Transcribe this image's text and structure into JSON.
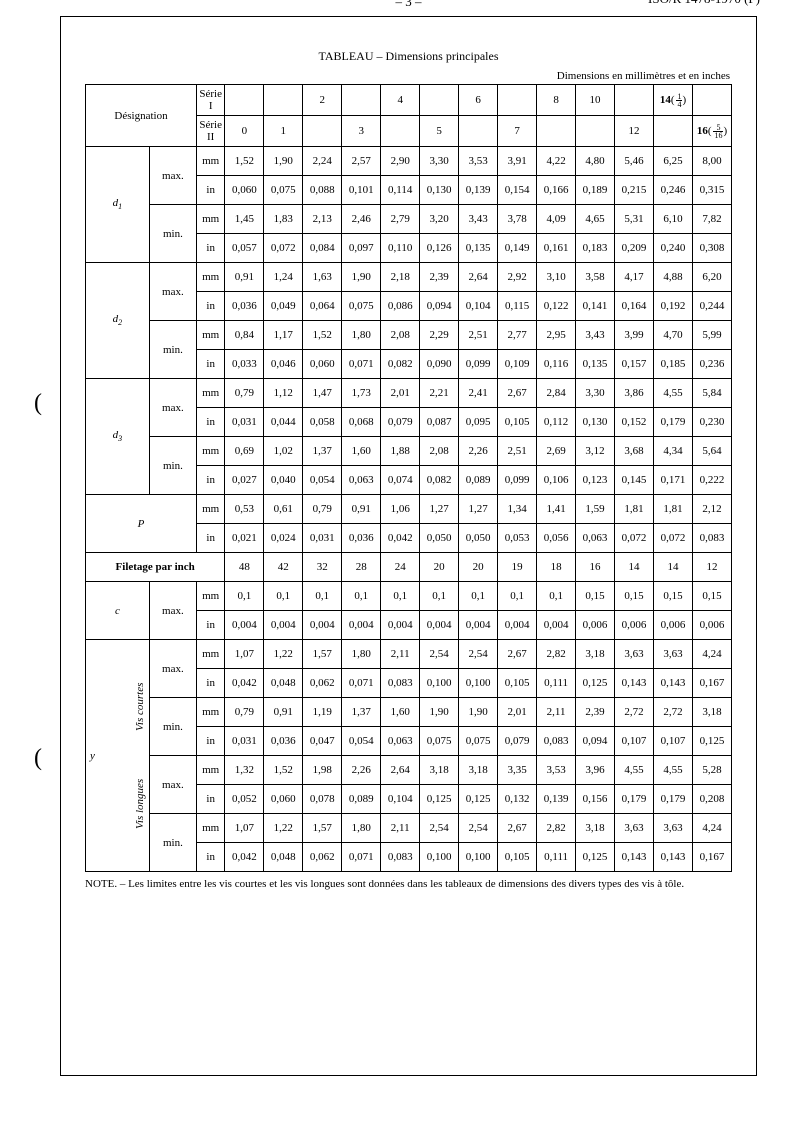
{
  "page_number": "– 3 –",
  "document_id": "ISO/R 1478-1970 (F)",
  "table_title": "TABLEAU – Dimensions principales",
  "units_caption": "Dimensions en millimètres et en inches",
  "labels": {
    "designation": "Désignation",
    "serie1": "Série I",
    "serie2": "Série II",
    "max": "max.",
    "min": "min.",
    "mm": "mm",
    "in": "in",
    "d1": "d",
    "d1sub": "1",
    "d2": "d",
    "d2sub": "2",
    "d3": "d",
    "d3sub": "3",
    "P": "P",
    "filetage": "Filetage par inch",
    "c": "c",
    "y": "y",
    "vis_courtes": "Vis courtes",
    "vis_longues": "Vis longues"
  },
  "header": {
    "serie1_cells": [
      "",
      "",
      "2",
      "",
      "4",
      "",
      "6",
      "",
      "8",
      "10",
      "",
      "14 (¼)",
      ""
    ],
    "serie2_cells": [
      "0",
      "1",
      "",
      "3",
      "",
      "5",
      "",
      "7",
      "",
      "",
      "12",
      "",
      "16(5/16)"
    ],
    "serie2_frac14_num": "1",
    "serie2_frac14_den": "4",
    "serie2_frac516_num": "5",
    "serie2_frac516_den": "16"
  },
  "rows": {
    "d1_max_mm": [
      "1,52",
      "1,90",
      "2,24",
      "2,57",
      "2,90",
      "3,30",
      "3,53",
      "3,91",
      "4,22",
      "4,80",
      "5,46",
      "6,25",
      "8,00"
    ],
    "d1_max_in": [
      "0,060",
      "0,075",
      "0,088",
      "0,101",
      "0,114",
      "0,130",
      "0,139",
      "0,154",
      "0,166",
      "0,189",
      "0,215",
      "0,246",
      "0,315"
    ],
    "d1_min_mm": [
      "1,45",
      "1,83",
      "2,13",
      "2,46",
      "2,79",
      "3,20",
      "3,43",
      "3,78",
      "4,09",
      "4,65",
      "5,31",
      "6,10",
      "7,82"
    ],
    "d1_min_in": [
      "0,057",
      "0,072",
      "0,084",
      "0,097",
      "0,110",
      "0,126",
      "0,135",
      "0,149",
      "0,161",
      "0,183",
      "0,209",
      "0,240",
      "0,308"
    ],
    "d2_max_mm": [
      "0,91",
      "1,24",
      "1,63",
      "1,90",
      "2,18",
      "2,39",
      "2,64",
      "2,92",
      "3,10",
      "3,58",
      "4,17",
      "4,88",
      "6,20"
    ],
    "d2_max_in": [
      "0,036",
      "0,049",
      "0,064",
      "0,075",
      "0,086",
      "0,094",
      "0,104",
      "0,115",
      "0,122",
      "0,141",
      "0,164",
      "0,192",
      "0,244"
    ],
    "d2_min_mm": [
      "0,84",
      "1,17",
      "1,52",
      "1,80",
      "2,08",
      "2,29",
      "2,51",
      "2,77",
      "2,95",
      "3,43",
      "3,99",
      "4,70",
      "5,99"
    ],
    "d2_min_in": [
      "0,033",
      "0,046",
      "0,060",
      "0,071",
      "0,082",
      "0,090",
      "0,099",
      "0,109",
      "0,116",
      "0,135",
      "0,157",
      "0,185",
      "0,236"
    ],
    "d3_max_mm": [
      "0,79",
      "1,12",
      "1,47",
      "1,73",
      "2,01",
      "2,21",
      "2,41",
      "2,67",
      "2,84",
      "3,30",
      "3,86",
      "4,55",
      "5,84"
    ],
    "d3_max_in": [
      "0,031",
      "0,044",
      "0,058",
      "0,068",
      "0,079",
      "0,087",
      "0,095",
      "0,105",
      "0,112",
      "0,130",
      "0,152",
      "0,179",
      "0,230"
    ],
    "d3_min_mm": [
      "0,69",
      "1,02",
      "1,37",
      "1,60",
      "1,88",
      "2,08",
      "2,26",
      "2,51",
      "2,69",
      "3,12",
      "3,68",
      "4,34",
      "5,64"
    ],
    "d3_min_in": [
      "0,027",
      "0,040",
      "0,054",
      "0,063",
      "0,074",
      "0,082",
      "0,089",
      "0,099",
      "0,106",
      "0,123",
      "0,145",
      "0,171",
      "0,222"
    ],
    "P_mm": [
      "0,53",
      "0,61",
      "0,79",
      "0,91",
      "1,06",
      "1,27",
      "1,27",
      "1,34",
      "1,41",
      "1,59",
      "1,81",
      "1,81",
      "2,12"
    ],
    "P_in": [
      "0,021",
      "0,024",
      "0,031",
      "0,036",
      "0,042",
      "0,050",
      "0,050",
      "0,053",
      "0,056",
      "0,063",
      "0,072",
      "0,072",
      "0,083"
    ],
    "filetage": [
      "48",
      "42",
      "32",
      "28",
      "24",
      "20",
      "20",
      "19",
      "18",
      "16",
      "14",
      "14",
      "12"
    ],
    "c_max_mm": [
      "0,1",
      "0,1",
      "0,1",
      "0,1",
      "0,1",
      "0,1",
      "0,1",
      "0,1",
      "0,1",
      "0,15",
      "0,15",
      "0,15",
      "0,15"
    ],
    "c_max_in": [
      "0,004",
      "0,004",
      "0,004",
      "0,004",
      "0,004",
      "0,004",
      "0,004",
      "0,004",
      "0,004",
      "0,006",
      "0,006",
      "0,006",
      "0,006"
    ],
    "yc_max_mm": [
      "1,07",
      "1,22",
      "1,57",
      "1,80",
      "2,11",
      "2,54",
      "2,54",
      "2,67",
      "2,82",
      "3,18",
      "3,63",
      "3,63",
      "4,24"
    ],
    "yc_max_in": [
      "0,042",
      "0,048",
      "0,062",
      "0,071",
      "0,083",
      "0,100",
      "0,100",
      "0,105",
      "0,111",
      "0,125",
      "0,143",
      "0,143",
      "0,167"
    ],
    "yc_min_mm": [
      "0,79",
      "0,91",
      "1,19",
      "1,37",
      "1,60",
      "1,90",
      "1,90",
      "2,01",
      "2,11",
      "2,39",
      "2,72",
      "2,72",
      "3,18"
    ],
    "yc_min_in": [
      "0,031",
      "0,036",
      "0,047",
      "0,054",
      "0,063",
      "0,075",
      "0,075",
      "0,079",
      "0,083",
      "0,094",
      "0,107",
      "0,107",
      "0,125"
    ],
    "yl_max_mm": [
      "1,32",
      "1,52",
      "1,98",
      "2,26",
      "2,64",
      "3,18",
      "3,18",
      "3,35",
      "3,53",
      "3,96",
      "4,55",
      "4,55",
      "5,28"
    ],
    "yl_max_in": [
      "0,052",
      "0,060",
      "0,078",
      "0,089",
      "0,104",
      "0,125",
      "0,125",
      "0,132",
      "0,139",
      "0,156",
      "0,179",
      "0,179",
      "0,208"
    ],
    "yl_min_mm": [
      "1,07",
      "1,22",
      "1,57",
      "1,80",
      "2,11",
      "2,54",
      "2,54",
      "2,67",
      "2,82",
      "3,18",
      "3,63",
      "3,63",
      "4,24"
    ],
    "yl_min_in": [
      "0,042",
      "0,048",
      "0,062",
      "0,071",
      "0,083",
      "0,100",
      "0,100",
      "0,105",
      "0,111",
      "0,125",
      "0,143",
      "0,143",
      "0,167"
    ]
  },
  "note": "NOTE. – Les limites entre les vis courtes et les vis longues sont données dans les tableaux de dimensions des divers types des vis à tôle.",
  "style": {
    "background_color": "#ffffff",
    "text_color": "#000000",
    "border_color": "#000000",
    "font_family": "Times New Roman",
    "body_font_size": 12,
    "table_font_size": 11,
    "note_font_size": 11
  }
}
